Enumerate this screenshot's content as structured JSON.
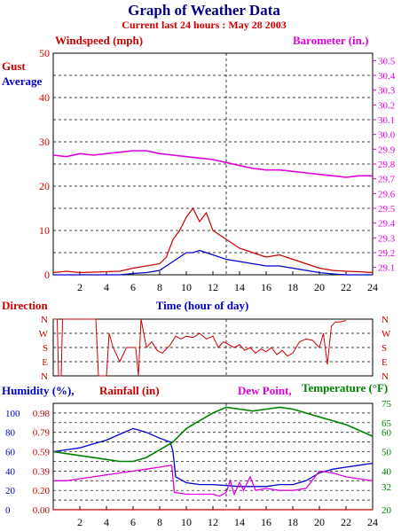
{
  "header": {
    "title": "Graph of Weather Data",
    "subtitle": "Current last 24 hours : May 28 2003"
  },
  "colors": {
    "title": "#000080",
    "red": "#cc0000",
    "blue": "#0000cc",
    "magenta": "#e000e0",
    "green": "#008000",
    "grid": "#000000"
  },
  "chart_data": [
    {
      "type": "line",
      "name": "wind-barometer",
      "labels": {
        "left_top": "Windspeed (mph)",
        "right_top": "Barometer (in.)",
        "gust": "Gust",
        "average": "Average",
        "xlabel": "Time (hour of day)"
      },
      "xlim": [
        0,
        24
      ],
      "x_ticks": [
        "2",
        "4",
        "6",
        "8",
        "10",
        "12",
        "14",
        "16",
        "18",
        "20",
        "22",
        "24"
      ],
      "ylim_left": [
        0,
        50
      ],
      "y_ticks_left": [
        "0",
        "10",
        "20",
        "30",
        "40",
        "50"
      ],
      "ylim_right": [
        29.05,
        30.55
      ],
      "y_ticks_right": [
        "29.1",
        "29.2",
        "29.3",
        "29.4",
        "29.5",
        "29.6",
        "29.7",
        "29.8",
        "29.9",
        "30.0",
        "30.1",
        "30.2",
        "30.3",
        "30.4",
        "30.5"
      ],
      "current_time_marker": 13,
      "series": [
        {
          "key": "barometer",
          "axis": "right",
          "color": "#e000e0",
          "points": [
            [
              0,
              29.86
            ],
            [
              1,
              29.85
            ],
            [
              2,
              29.87
            ],
            [
              3,
              29.86
            ],
            [
              4,
              29.87
            ],
            [
              5,
              29.88
            ],
            [
              6,
              29.89
            ],
            [
              7,
              29.89
            ],
            [
              8,
              29.87
            ],
            [
              9,
              29.86
            ],
            [
              10,
              29.85
            ],
            [
              11,
              29.84
            ],
            [
              12,
              29.83
            ],
            [
              13,
              29.81
            ],
            [
              14,
              29.79
            ],
            [
              15,
              29.77
            ],
            [
              16,
              29.76
            ],
            [
              17,
              29.76
            ],
            [
              18,
              29.75
            ],
            [
              19,
              29.74
            ],
            [
              20,
              29.73
            ],
            [
              21,
              29.72
            ],
            [
              22,
              29.71
            ],
            [
              23,
              29.72
            ],
            [
              24,
              29.72
            ]
          ]
        },
        {
          "key": "gust",
          "axis": "left",
          "color": "#cc0000",
          "points": [
            [
              0,
              0.5
            ],
            [
              1,
              0.8
            ],
            [
              2,
              0.5
            ],
            [
              3,
              0.6
            ],
            [
              4,
              0.7
            ],
            [
              5,
              0.8
            ],
            [
              6,
              1.5
            ],
            [
              7,
              2
            ],
            [
              8,
              2.5
            ],
            [
              8.5,
              4
            ],
            [
              9,
              8
            ],
            [
              9.5,
              10
            ],
            [
              10,
              13
            ],
            [
              10.5,
              15
            ],
            [
              11,
              12
            ],
            [
              11.5,
              14
            ],
            [
              12,
              10
            ],
            [
              12.5,
              9
            ],
            [
              13,
              8
            ],
            [
              13.5,
              7
            ],
            [
              14,
              6
            ],
            [
              14.5,
              5.5
            ],
            [
              15,
              5
            ],
            [
              16,
              4
            ],
            [
              17,
              4.5
            ],
            [
              18,
              3.5
            ],
            [
              19,
              2.5
            ],
            [
              20,
              1.5
            ],
            [
              21,
              1
            ],
            [
              22,
              0.8
            ],
            [
              23,
              0.7
            ],
            [
              24,
              0.5
            ]
          ]
        },
        {
          "key": "average",
          "axis": "left",
          "color": "#0000cc",
          "points": [
            [
              0,
              0
            ],
            [
              5,
              0
            ],
            [
              6,
              0.3
            ],
            [
              7,
              0.5
            ],
            [
              8,
              1
            ],
            [
              9,
              3
            ],
            [
              9.5,
              4
            ],
            [
              10,
              5
            ],
            [
              10.5,
              5
            ],
            [
              11,
              5.5
            ],
            [
              11.5,
              5
            ],
            [
              12,
              4.5
            ],
            [
              13,
              3.5
            ],
            [
              14,
              3
            ],
            [
              15,
              2.5
            ],
            [
              16,
              2
            ],
            [
              17,
              2
            ],
            [
              18,
              1.5
            ],
            [
              19,
              1
            ],
            [
              20,
              0.5
            ],
            [
              21,
              0.2
            ],
            [
              22,
              0
            ],
            [
              24,
              0
            ]
          ]
        }
      ]
    },
    {
      "type": "line",
      "name": "direction",
      "labels": {
        "left": "Direction",
        "xlabel": "Time (hour of day)"
      },
      "xlim": [
        0,
        24
      ],
      "y_categories": [
        "N",
        "W",
        "S",
        "E",
        "N"
      ],
      "series": [
        {
          "key": "direction",
          "color": "#cc0000",
          "points": [
            [
              0,
              0
            ],
            [
              0.3,
              0
            ],
            [
              0.4,
              4
            ],
            [
              0.6,
              4
            ],
            [
              0.7,
              0
            ],
            [
              3.2,
              0
            ],
            [
              3.4,
              4
            ],
            [
              4.0,
              4
            ],
            [
              4.2,
              1
            ],
            [
              4.5,
              2
            ],
            [
              5.0,
              3
            ],
            [
              5.5,
              2
            ],
            [
              6.2,
              2
            ],
            [
              6.4,
              4
            ],
            [
              6.6,
              0
            ],
            [
              6.8,
              1
            ],
            [
              7.0,
              2
            ],
            [
              7.4,
              1.6
            ],
            [
              7.8,
              2.2
            ],
            [
              8.2,
              2.4
            ],
            [
              8.8,
              1.8
            ],
            [
              9.2,
              1.2
            ],
            [
              9.6,
              1.4
            ],
            [
              10.0,
              1.2
            ],
            [
              10.5,
              1.3
            ],
            [
              11.0,
              1.0
            ],
            [
              11.5,
              1.4
            ],
            [
              12.0,
              1.2
            ],
            [
              12.4,
              2.0
            ],
            [
              12.8,
              1.6
            ],
            [
              13.2,
              1.8
            ],
            [
              13.6,
              2.0
            ],
            [
              14.0,
              1.8
            ],
            [
              14.4,
              2.2
            ],
            [
              14.8,
              2.0
            ],
            [
              15.2,
              2.4
            ],
            [
              15.6,
              2.1
            ],
            [
              16.0,
              2.3
            ],
            [
              16.4,
              2.0
            ],
            [
              16.8,
              2.5
            ],
            [
              17.2,
              2.2
            ],
            [
              17.6,
              2.6
            ],
            [
              18.0,
              2.4
            ],
            [
              18.5,
              1.6
            ],
            [
              19.0,
              1.4
            ],
            [
              19.5,
              1.5
            ],
            [
              20.0,
              2.0
            ],
            [
              20.3,
              1.0
            ],
            [
              20.6,
              3.2
            ],
            [
              20.9,
              0.5
            ],
            [
              21.2,
              0.2
            ],
            [
              21.5,
              0.2
            ],
            [
              22.0,
              0.1
            ]
          ]
        }
      ]
    },
    {
      "type": "line",
      "name": "humidity-rain-dew-temperature",
      "labels": {
        "humidity": "Humidity (%),",
        "rainfall": "Rainfall (in)",
        "dewpoint": "Dew Point,",
        "temperature": "Temperature (°F)"
      },
      "xlim": [
        0,
        24
      ],
      "x_ticks": [
        "2",
        "4",
        "6",
        "8",
        "10",
        "12",
        "14",
        "16",
        "18",
        "20",
        "22",
        "24"
      ],
      "y_ticks_humidity": [
        "0",
        "20",
        "40",
        "60",
        "80",
        "100"
      ],
      "y_ticks_rain": [
        "0.00",
        "0.20",
        "0.39",
        "0.59",
        "0.79",
        "0.98"
      ],
      "y_ticks_temp": [
        "20",
        "32",
        "40",
        "50",
        "60",
        "65",
        "75"
      ],
      "ylim_temp": [
        20,
        75
      ],
      "ylim_humidity": [
        0,
        110
      ],
      "series": [
        {
          "key": "humidity",
          "color": "#0000cc",
          "points": [
            [
              0,
              60
            ],
            [
              1,
              62
            ],
            [
              2,
              64
            ],
            [
              3,
              68
            ],
            [
              4,
              72
            ],
            [
              5,
              78
            ],
            [
              6,
              84
            ],
            [
              6.5,
              82
            ],
            [
              7,
              80
            ],
            [
              8,
              74
            ],
            [
              8.8,
              70
            ],
            [
              9,
              60
            ],
            [
              9.2,
              34
            ],
            [
              10,
              28
            ],
            [
              11,
              26
            ],
            [
              12,
              26
            ],
            [
              13,
              25
            ],
            [
              14,
              24
            ],
            [
              15,
              24
            ],
            [
              16,
              24
            ],
            [
              17,
              26
            ],
            [
              18,
              26
            ],
            [
              19,
              30
            ],
            [
              20,
              38
            ],
            [
              21,
              42
            ],
            [
              22,
              44
            ],
            [
              23,
              46
            ],
            [
              24,
              48
            ]
          ]
        },
        {
          "key": "rainfall",
          "color": "#cc0000",
          "points": [
            [
              0,
              0
            ],
            [
              9,
              0
            ],
            [
              9.1,
              0
            ],
            [
              24,
              0
            ]
          ]
        },
        {
          "key": "dewpoint",
          "color": "#e000e0",
          "points": [
            [
              0,
              35
            ],
            [
              1,
              35
            ],
            [
              2,
              36
            ],
            [
              3,
              37
            ],
            [
              4,
              38
            ],
            [
              5,
              39
            ],
            [
              6,
              40
            ],
            [
              7,
              41
            ],
            [
              8,
              42
            ],
            [
              8.9,
              43
            ],
            [
              9.1,
              29
            ],
            [
              10,
              28
            ],
            [
              11,
              28
            ],
            [
              12,
              28
            ],
            [
              12.5,
              27
            ],
            [
              13,
              29
            ],
            [
              13.3,
              35
            ],
            [
              13.6,
              28
            ],
            [
              14,
              34
            ],
            [
              14.3,
              30
            ],
            [
              14.8,
              37
            ],
            [
              15.2,
              30
            ],
            [
              16,
              31
            ],
            [
              17,
              30
            ],
            [
              18,
              30
            ],
            [
              19,
              31
            ],
            [
              20,
              40
            ],
            [
              21,
              39
            ],
            [
              22,
              37
            ],
            [
              23,
              36
            ],
            [
              24,
              35
            ]
          ]
        },
        {
          "key": "temperature",
          "color": "#008000",
          "points": [
            [
              0,
              50
            ],
            [
              1,
              49
            ],
            [
              2,
              48
            ],
            [
              3,
              47
            ],
            [
              4,
              46
            ],
            [
              5,
              45
            ],
            [
              6,
              45
            ],
            [
              7,
              47
            ],
            [
              8,
              51
            ],
            [
              9,
              55
            ],
            [
              10,
              62
            ],
            [
              11,
              66
            ],
            [
              12,
              70
            ],
            [
              13,
              73
            ],
            [
              14,
              72
            ],
            [
              15,
              71
            ],
            [
              16,
              72
            ],
            [
              17,
              73
            ],
            [
              18,
              72
            ],
            [
              19,
              70
            ],
            [
              20,
              68
            ],
            [
              21,
              66
            ],
            [
              22,
              64
            ],
            [
              23,
              61
            ],
            [
              24,
              58
            ]
          ]
        }
      ]
    }
  ]
}
